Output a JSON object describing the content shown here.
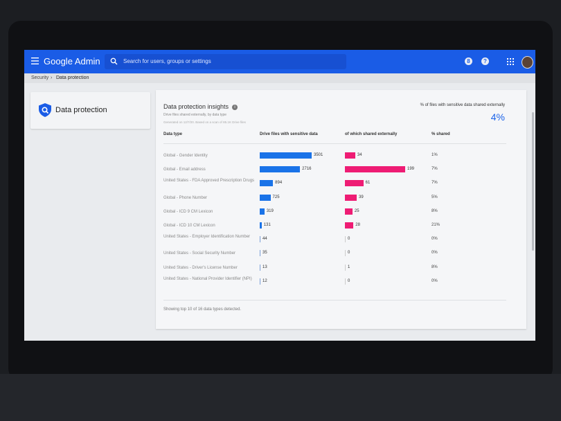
{
  "header": {
    "app_title": "Google Admin",
    "search_placeholder": "Search for users, groups or settings",
    "support_icon_label": "8",
    "help_icon_label": "?"
  },
  "breadcrumb": {
    "items": [
      "Security",
      "Data protection"
    ],
    "separator": "›"
  },
  "left_card": {
    "title": "Data protection"
  },
  "insights": {
    "title": "Data protection insights",
    "subtitle": "Drive files shared externally, by data type",
    "generated": "Generated on 12/7/20. Based on a scan of 85.1K Drive files",
    "kpi_label": "% of files with sensitive data shared externally",
    "kpi_value": "4%",
    "columns": [
      "Data type",
      "Drive files with sensitive data",
      "of which shared externally",
      "% shared"
    ],
    "rows": [
      {
        "type": "Global - Gender Identity",
        "files": 3501,
        "shared": 34,
        "pct": "1%"
      },
      {
        "type": "Global - Email address",
        "files": 2716,
        "shared": 199,
        "pct": "7%"
      },
      {
        "type": "United States - FDA Approved Prescription Drugs",
        "files": 894,
        "shared": 61,
        "pct": "7%"
      },
      {
        "type": "Global - Phone Number",
        "files": 725,
        "shared": 39,
        "pct": "5%"
      },
      {
        "type": "Global - ICD 9 CM Lexicon",
        "files": 319,
        "shared": 25,
        "pct": "8%"
      },
      {
        "type": "Global - ICD 10 CM Lexicon",
        "files": 131,
        "shared": 28,
        "pct": "21%"
      },
      {
        "type": "United States - Employer Identification Number",
        "files": 44,
        "shared": 0,
        "pct": "0%"
      },
      {
        "type": "United States - Social Security Number",
        "files": 35,
        "shared": 0,
        "pct": "0%"
      },
      {
        "type": "United States - Driver's License Number",
        "files": 13,
        "shared": 1,
        "pct": "8%"
      },
      {
        "type": "United States - National Provider Identifier (NPI)",
        "files": 12,
        "shared": 0,
        "pct": "0%"
      }
    ],
    "footer": "Showing top 10 of 16 data types detected.",
    "colors": {
      "files_bar": "#1a73e8",
      "shared_bar": "#ee1c74",
      "accent": "#1a5ce6"
    }
  }
}
